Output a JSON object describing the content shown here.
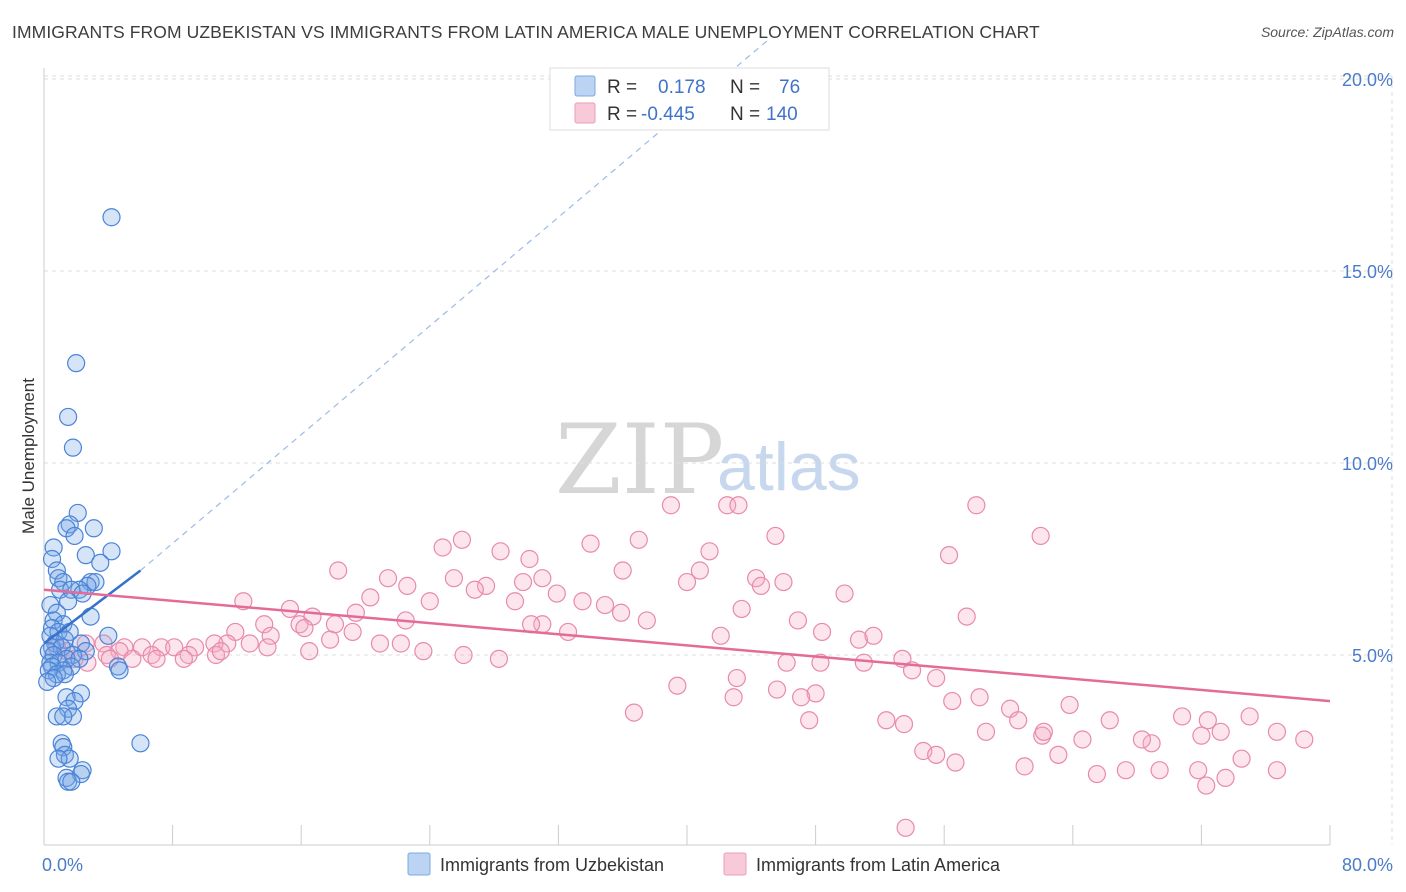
{
  "header": {
    "title": "IMMIGRANTS FROM UZBEKISTAN VS IMMIGRANTS FROM LATIN AMERICA MALE UNEMPLOYMENT CORRELATION CHART",
    "source": "Source: ZipAtlas.com"
  },
  "watermark": {
    "zip": "ZIP",
    "atlas": "atlas"
  },
  "legend_box": {
    "rows": [
      {
        "r_label": "R =",
        "r_value": "0.178",
        "n_label": "N =",
        "n_value": "76",
        "color": "#aac8f0"
      },
      {
        "r_label": "R =",
        "r_value": "-0.445",
        "n_label": "N =",
        "n_value": "140",
        "color": "#f5b8cc"
      }
    ]
  },
  "bottom_legend": [
    {
      "label": "Immigrants from Uzbekistan",
      "color": "#aac8f0"
    },
    {
      "label": "Immigrants from Latin America",
      "color": "#f5b8cc"
    }
  ],
  "colors": {
    "blue_fill": "rgba(120,165,230,0.30)",
    "blue_stroke": "#4a84d8",
    "blue_line": "#3572cc",
    "pink_fill": "rgba(245,170,195,0.30)",
    "pink_stroke": "#e88aab",
    "pink_line": "#e36b98",
    "grid": "#dddddd",
    "axis_tick_text": "#4a7cc9"
  },
  "chart_data": {
    "type": "scatter",
    "title": "IMMIGRANTS FROM UZBEKISTAN VS IMMIGRANTS FROM LATIN AMERICA MALE UNEMPLOYMENT CORRELATION CHART",
    "xlabel": "",
    "ylabel": "Male Unemployment",
    "xlim": [
      0,
      80
    ],
    "ylim": [
      0,
      21
    ],
    "x_tick_labels": [
      "0.0%",
      "80.0%"
    ],
    "y_ticks": [
      5,
      10,
      15,
      20
    ],
    "y_tick_labels": [
      "5.0%",
      "10.0%",
      "15.0%",
      "20.0%"
    ],
    "grid": true,
    "legend_position": "top-center",
    "series": [
      {
        "name": "Immigrants from Uzbekistan",
        "R": 0.178,
        "N": 76,
        "trend": {
          "x0": 0,
          "y0": 5.3,
          "x1": 6.0,
          "y1": 7.2,
          "dash_to_x": 45,
          "dash_to_y": 21
        },
        "points": [
          [
            4.2,
            16.4
          ],
          [
            2.0,
            12.6
          ],
          [
            1.5,
            11.2
          ],
          [
            1.8,
            10.4
          ],
          [
            2.1,
            8.7
          ],
          [
            1.6,
            8.4
          ],
          [
            1.4,
            8.3
          ],
          [
            3.1,
            8.3
          ],
          [
            1.9,
            8.1
          ],
          [
            0.6,
            7.8
          ],
          [
            4.2,
            7.7
          ],
          [
            2.6,
            7.6
          ],
          [
            0.5,
            7.5
          ],
          [
            3.5,
            7.4
          ],
          [
            0.8,
            7.2
          ],
          [
            0.9,
            7.0
          ],
          [
            1.2,
            6.9
          ],
          [
            2.9,
            6.9
          ],
          [
            3.2,
            6.9
          ],
          [
            2.7,
            6.8
          ],
          [
            1.0,
            6.7
          ],
          [
            2.2,
            6.7
          ],
          [
            1.7,
            6.7
          ],
          [
            2.4,
            6.6
          ],
          [
            1.5,
            6.4
          ],
          [
            0.4,
            6.3
          ],
          [
            0.8,
            6.1
          ],
          [
            2.9,
            6.0
          ],
          [
            0.6,
            5.9
          ],
          [
            1.2,
            5.8
          ],
          [
            0.5,
            5.7
          ],
          [
            0.9,
            5.6
          ],
          [
            1.6,
            5.6
          ],
          [
            0.4,
            5.5
          ],
          [
            1.3,
            5.4
          ],
          [
            4.0,
            5.5
          ],
          [
            0.7,
            5.3
          ],
          [
            2.3,
            5.3
          ],
          [
            0.5,
            5.2
          ],
          [
            1.1,
            5.2
          ],
          [
            2.6,
            5.1
          ],
          [
            0.3,
            5.1
          ],
          [
            1.8,
            5.0
          ],
          [
            0.6,
            5.0
          ],
          [
            1.4,
            4.9
          ],
          [
            2.2,
            4.9
          ],
          [
            0.4,
            4.8
          ],
          [
            0.9,
            4.8
          ],
          [
            1.7,
            4.7
          ],
          [
            0.5,
            4.7
          ],
          [
            4.6,
            4.7
          ],
          [
            1.2,
            4.6
          ],
          [
            0.3,
            4.6
          ],
          [
            4.7,
            4.6
          ],
          [
            0.8,
            4.5
          ],
          [
            1.3,
            4.5
          ],
          [
            0.6,
            4.4
          ],
          [
            0.2,
            4.3
          ],
          [
            2.3,
            4.0
          ],
          [
            1.4,
            3.9
          ],
          [
            1.9,
            3.8
          ],
          [
            1.5,
            3.6
          ],
          [
            0.8,
            3.4
          ],
          [
            1.8,
            3.4
          ],
          [
            1.2,
            3.4
          ],
          [
            6.0,
            2.7
          ],
          [
            1.1,
            2.7
          ],
          [
            1.2,
            2.6
          ],
          [
            1.3,
            2.4
          ],
          [
            1.6,
            2.3
          ],
          [
            0.9,
            2.3
          ],
          [
            2.4,
            2.0
          ],
          [
            2.3,
            1.9
          ],
          [
            1.4,
            1.8
          ],
          [
            1.5,
            1.7
          ],
          [
            1.7,
            1.7
          ]
        ]
      },
      {
        "name": "Immigrants from Latin America",
        "R": -0.445,
        "N": 140,
        "trend": {
          "x0": 0,
          "y0": 6.7,
          "x1": 80,
          "y1": 3.8
        },
        "points": [
          [
            39.0,
            8.9
          ],
          [
            42.5,
            8.9
          ],
          [
            43.2,
            8.9
          ],
          [
            58.0,
            8.9
          ],
          [
            26.0,
            8.0
          ],
          [
            37.0,
            8.0
          ],
          [
            34.0,
            7.9
          ],
          [
            45.5,
            8.1
          ],
          [
            62.0,
            8.1
          ],
          [
            24.8,
            7.8
          ],
          [
            28.4,
            7.7
          ],
          [
            41.4,
            7.7
          ],
          [
            56.3,
            7.6
          ],
          [
            30.2,
            7.5
          ],
          [
            18.3,
            7.2
          ],
          [
            36.0,
            7.2
          ],
          [
            40.8,
            7.2
          ],
          [
            44.3,
            7.0
          ],
          [
            31.0,
            7.0
          ],
          [
            25.5,
            7.0
          ],
          [
            21.4,
            7.0
          ],
          [
            29.8,
            6.9
          ],
          [
            40.0,
            6.9
          ],
          [
            46.0,
            6.9
          ],
          [
            22.6,
            6.8
          ],
          [
            27.5,
            6.8
          ],
          [
            44.6,
            6.8
          ],
          [
            26.8,
            6.7
          ],
          [
            31.9,
            6.6
          ],
          [
            49.8,
            6.6
          ],
          [
            20.3,
            6.5
          ],
          [
            24.0,
            6.4
          ],
          [
            29.3,
            6.4
          ],
          [
            33.5,
            6.4
          ],
          [
            12.4,
            6.4
          ],
          [
            34.9,
            6.3
          ],
          [
            15.3,
            6.2
          ],
          [
            19.4,
            6.1
          ],
          [
            35.9,
            6.1
          ],
          [
            43.4,
            6.2
          ],
          [
            16.7,
            6.0
          ],
          [
            22.5,
            5.9
          ],
          [
            37.5,
            5.9
          ],
          [
            57.4,
            6.0
          ],
          [
            31.0,
            5.8
          ],
          [
            18.1,
            5.8
          ],
          [
            46.9,
            5.9
          ],
          [
            15.9,
            5.8
          ],
          [
            30.3,
            5.8
          ],
          [
            13.7,
            5.8
          ],
          [
            16.2,
            5.7
          ],
          [
            32.6,
            5.6
          ],
          [
            48.4,
            5.6
          ],
          [
            11.9,
            5.6
          ],
          [
            19.2,
            5.6
          ],
          [
            14.1,
            5.5
          ],
          [
            42.1,
            5.5
          ],
          [
            50.7,
            5.4
          ],
          [
            51.6,
            5.5
          ],
          [
            20.9,
            5.3
          ],
          [
            22.2,
            5.3
          ],
          [
            9.4,
            5.2
          ],
          [
            11.4,
            5.3
          ],
          [
            10.6,
            5.3
          ],
          [
            6.1,
            5.2
          ],
          [
            7.3,
            5.2
          ],
          [
            8.1,
            5.2
          ],
          [
            5.0,
            5.2
          ],
          [
            3.7,
            5.3
          ],
          [
            2.6,
            5.3
          ],
          [
            1.4,
            5.1
          ],
          [
            0.8,
            5.2
          ],
          [
            9.0,
            5.0
          ],
          [
            10.7,
            5.0
          ],
          [
            13.9,
            5.2
          ],
          [
            4.7,
            5.1
          ],
          [
            16.5,
            5.1
          ],
          [
            6.7,
            5.0
          ],
          [
            3.9,
            5.0
          ],
          [
            1.9,
            4.9
          ],
          [
            4.1,
            4.9
          ],
          [
            5.5,
            4.9
          ],
          [
            2.7,
            4.8
          ],
          [
            46.2,
            4.8
          ],
          [
            48.3,
            4.8
          ],
          [
            53.4,
            4.9
          ],
          [
            51.0,
            4.8
          ],
          [
            54.0,
            4.6
          ],
          [
            55.5,
            4.4
          ],
          [
            48.0,
            4.0
          ],
          [
            58.2,
            3.9
          ],
          [
            56.5,
            3.8
          ],
          [
            45.6,
            4.1
          ],
          [
            47.1,
            3.9
          ],
          [
            63.8,
            3.7
          ],
          [
            60.1,
            3.6
          ],
          [
            66.3,
            3.3
          ],
          [
            70.8,
            3.4
          ],
          [
            72.4,
            3.3
          ],
          [
            60.6,
            3.3
          ],
          [
            52.4,
            3.3
          ],
          [
            58.6,
            3.0
          ],
          [
            62.1,
            2.9
          ],
          [
            62.2,
            3.0
          ],
          [
            64.6,
            2.8
          ],
          [
            68.9,
            2.7
          ],
          [
            72.0,
            2.9
          ],
          [
            73.2,
            3.0
          ],
          [
            75.0,
            3.4
          ],
          [
            76.7,
            3.0
          ],
          [
            78.4,
            2.8
          ],
          [
            68.3,
            2.8
          ],
          [
            54.7,
            2.5
          ],
          [
            55.5,
            2.4
          ],
          [
            56.7,
            2.2
          ],
          [
            63.1,
            2.4
          ],
          [
            67.3,
            2.0
          ],
          [
            74.5,
            2.3
          ],
          [
            76.7,
            2.0
          ],
          [
            71.8,
            2.0
          ],
          [
            69.4,
            2.0
          ],
          [
            73.5,
            1.8
          ],
          [
            72.3,
            1.6
          ],
          [
            53.6,
            0.5
          ],
          [
            36.7,
            3.5
          ],
          [
            47.6,
            3.3
          ],
          [
            53.5,
            3.2
          ],
          [
            61.0,
            2.1
          ],
          [
            65.5,
            1.9
          ],
          [
            43.1,
            4.4
          ],
          [
            42.9,
            3.9
          ],
          [
            39.4,
            4.2
          ],
          [
            26.1,
            5.0
          ],
          [
            28.3,
            4.9
          ],
          [
            11.0,
            5.1
          ],
          [
            8.7,
            4.9
          ],
          [
            7.0,
            4.9
          ],
          [
            23.6,
            5.1
          ],
          [
            17.8,
            5.4
          ],
          [
            12.8,
            5.3
          ]
        ]
      }
    ]
  }
}
